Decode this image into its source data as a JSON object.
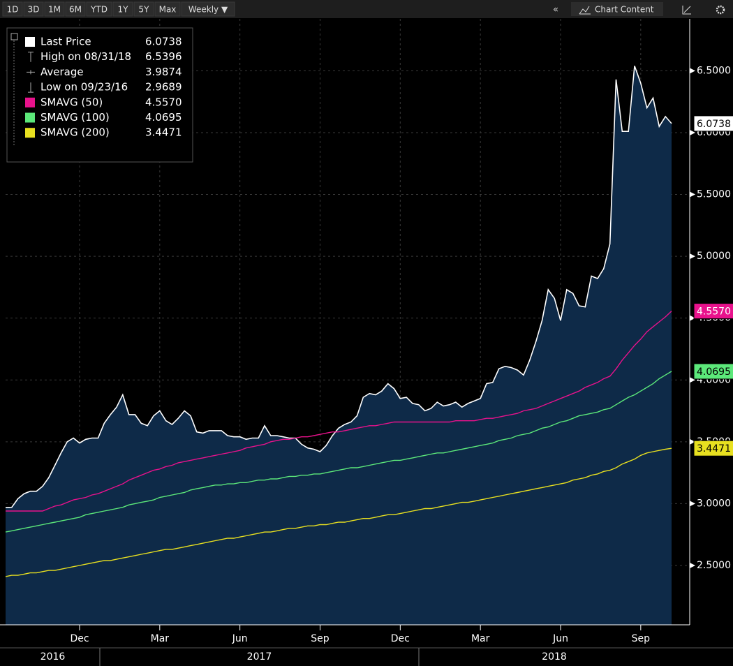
{
  "toolbar": {
    "ranges": [
      "1D",
      "3D",
      "1M",
      "6M",
      "YTD",
      "1Y",
      "5Y",
      "Max",
      "Weekly ▼"
    ],
    "collapse": "«",
    "menu": "Chart Content"
  },
  "chart_data": {
    "type": "line",
    "categories": [
      null,
      null,
      null,
      null,
      null,
      null,
      null,
      null,
      null,
      null,
      null,
      null,
      "Dec",
      null,
      null,
      null,
      null,
      null,
      null,
      null,
      null,
      null,
      null,
      null,
      null,
      "Mar",
      null,
      null,
      null,
      null,
      null,
      null,
      null,
      null,
      null,
      null,
      null,
      null,
      "Jun",
      null,
      null,
      null,
      null,
      null,
      null,
      null,
      null,
      null,
      null,
      null,
      null,
      "Sep",
      null,
      null,
      null,
      null,
      null,
      null,
      null,
      null,
      null,
      null,
      null,
      null,
      "Dec",
      null,
      null,
      null,
      null,
      null,
      null,
      null,
      null,
      null,
      null,
      null,
      null,
      "Mar",
      null,
      null,
      null,
      null,
      null,
      null,
      null,
      null,
      null,
      null,
      null,
      null,
      "Jun",
      null,
      null,
      null,
      null,
      null,
      null,
      null,
      null,
      null,
      null,
      null,
      null,
      "Sep",
      null,
      null,
      null,
      null,
      null
    ],
    "years": [
      "2016",
      "2017",
      "2018"
    ],
    "series": [
      {
        "name": "Last Price",
        "color": "#ffffff",
        "legend_label": "6.0738",
        "values": [
          2.9689,
          2.97,
          3.04,
          3.08,
          3.1,
          3.1,
          3.14,
          3.21,
          3.31,
          3.41,
          3.5,
          3.53,
          3.49,
          3.52,
          3.53,
          3.53,
          3.65,
          3.72,
          3.78,
          3.88,
          3.72,
          3.72,
          3.65,
          3.63,
          3.71,
          3.75,
          3.67,
          3.64,
          3.69,
          3.75,
          3.71,
          3.58,
          3.57,
          3.59,
          3.59,
          3.59,
          3.55,
          3.54,
          3.54,
          3.52,
          3.53,
          3.53,
          3.63,
          3.55,
          3.55,
          3.54,
          3.53,
          3.53,
          3.48,
          3.45,
          3.44,
          3.42,
          3.47,
          3.55,
          3.61,
          3.64,
          3.66,
          3.71,
          3.86,
          3.89,
          3.88,
          3.91,
          3.97,
          3.93,
          3.85,
          3.86,
          3.81,
          3.8,
          3.75,
          3.77,
          3.82,
          3.79,
          3.8,
          3.82,
          3.78,
          3.81,
          3.83,
          3.85,
          3.97,
          3.98,
          4.09,
          4.11,
          4.1,
          4.08,
          4.04,
          4.16,
          4.31,
          4.48,
          4.73,
          4.66,
          4.48,
          4.73,
          4.7,
          4.6,
          4.59,
          4.84,
          4.82,
          4.9,
          5.1,
          6.43,
          6.01,
          6.01,
          6.5396,
          6.4,
          6.2,
          6.28,
          6.05,
          6.13,
          6.0738
        ]
      },
      {
        "name": "SMAVG (50)",
        "color": "#e8128c",
        "legend_label": "4.5570",
        "values": [
          2.94,
          2.94,
          2.94,
          2.94,
          2.94,
          2.94,
          2.94,
          2.96,
          2.98,
          2.99,
          3.01,
          3.03,
          3.04,
          3.05,
          3.07,
          3.08,
          3.1,
          3.12,
          3.14,
          3.16,
          3.19,
          3.21,
          3.23,
          3.25,
          3.27,
          3.28,
          3.3,
          3.31,
          3.33,
          3.34,
          3.35,
          3.36,
          3.37,
          3.38,
          3.39,
          3.4,
          3.41,
          3.42,
          3.43,
          3.45,
          3.46,
          3.47,
          3.48,
          3.5,
          3.51,
          3.52,
          3.52,
          3.53,
          3.54,
          3.54,
          3.55,
          3.56,
          3.57,
          3.58,
          3.58,
          3.59,
          3.6,
          3.61,
          3.62,
          3.63,
          3.63,
          3.64,
          3.65,
          3.66,
          3.66,
          3.66,
          3.66,
          3.66,
          3.66,
          3.66,
          3.66,
          3.66,
          3.66,
          3.67,
          3.67,
          3.67,
          3.67,
          3.68,
          3.69,
          3.69,
          3.7,
          3.71,
          3.72,
          3.73,
          3.75,
          3.76,
          3.77,
          3.79,
          3.81,
          3.83,
          3.85,
          3.87,
          3.89,
          3.91,
          3.94,
          3.96,
          3.98,
          4.01,
          4.03,
          4.09,
          4.16,
          4.22,
          4.28,
          4.33,
          4.39,
          4.43,
          4.47,
          4.51,
          4.557
        ]
      },
      {
        "name": "SMAVG (100)",
        "color": "#5ce87a",
        "legend_label": "4.0695",
        "values": [
          2.77,
          2.78,
          2.79,
          2.8,
          2.81,
          2.82,
          2.83,
          2.84,
          2.85,
          2.86,
          2.87,
          2.88,
          2.89,
          2.91,
          2.92,
          2.93,
          2.94,
          2.95,
          2.96,
          2.97,
          2.99,
          3.0,
          3.01,
          3.02,
          3.03,
          3.05,
          3.06,
          3.07,
          3.08,
          3.09,
          3.11,
          3.12,
          3.13,
          3.14,
          3.15,
          3.15,
          3.16,
          3.16,
          3.17,
          3.17,
          3.18,
          3.19,
          3.19,
          3.2,
          3.2,
          3.21,
          3.22,
          3.22,
          3.23,
          3.23,
          3.24,
          3.24,
          3.25,
          3.26,
          3.27,
          3.28,
          3.29,
          3.29,
          3.3,
          3.31,
          3.32,
          3.33,
          3.34,
          3.35,
          3.35,
          3.36,
          3.37,
          3.38,
          3.39,
          3.4,
          3.41,
          3.41,
          3.42,
          3.43,
          3.44,
          3.45,
          3.46,
          3.47,
          3.48,
          3.49,
          3.51,
          3.52,
          3.53,
          3.55,
          3.56,
          3.57,
          3.59,
          3.61,
          3.62,
          3.64,
          3.66,
          3.67,
          3.69,
          3.71,
          3.72,
          3.73,
          3.74,
          3.76,
          3.77,
          3.8,
          3.83,
          3.86,
          3.88,
          3.91,
          3.94,
          3.97,
          4.01,
          4.04,
          4.0695
        ]
      },
      {
        "name": "SMAVG (200)",
        "color": "#e8e020",
        "legend_label": "3.4471",
        "values": [
          2.41,
          2.42,
          2.42,
          2.43,
          2.44,
          2.44,
          2.45,
          2.46,
          2.46,
          2.47,
          2.48,
          2.49,
          2.5,
          2.51,
          2.52,
          2.53,
          2.54,
          2.54,
          2.55,
          2.56,
          2.57,
          2.58,
          2.59,
          2.6,
          2.61,
          2.62,
          2.63,
          2.63,
          2.64,
          2.65,
          2.66,
          2.67,
          2.68,
          2.69,
          2.7,
          2.71,
          2.72,
          2.72,
          2.73,
          2.74,
          2.75,
          2.76,
          2.77,
          2.77,
          2.78,
          2.79,
          2.8,
          2.8,
          2.81,
          2.82,
          2.82,
          2.83,
          2.83,
          2.84,
          2.85,
          2.85,
          2.86,
          2.87,
          2.88,
          2.88,
          2.89,
          2.9,
          2.91,
          2.91,
          2.92,
          2.93,
          2.94,
          2.95,
          2.96,
          2.96,
          2.97,
          2.98,
          2.99,
          3.0,
          3.01,
          3.01,
          3.02,
          3.03,
          3.04,
          3.05,
          3.06,
          3.07,
          3.08,
          3.09,
          3.1,
          3.11,
          3.12,
          3.13,
          3.14,
          3.15,
          3.16,
          3.17,
          3.19,
          3.2,
          3.21,
          3.23,
          3.24,
          3.26,
          3.27,
          3.29,
          3.32,
          3.34,
          3.36,
          3.39,
          3.41,
          3.42,
          3.43,
          3.44,
          3.4471
        ]
      }
    ],
    "stats": [
      {
        "label": "High on 08/31/18",
        "value": "6.5396"
      },
      {
        "label": "Average",
        "value": "3.9874"
      },
      {
        "label": "Low on 09/23/16",
        "value": "2.9689"
      }
    ],
    "ylim": [
      2.02,
      6.92
    ],
    "yticks": [
      {
        "value": 2.5,
        "label": "2.5000"
      },
      {
        "value": 3.0,
        "label": "3.0000"
      },
      {
        "value": 3.5,
        "label": "3.5000"
      },
      {
        "value": 4.0,
        "label": "4.0000"
      },
      {
        "value": 4.5,
        "label": "4.5000"
      },
      {
        "value": 5.0,
        "label": "5.0000"
      },
      {
        "value": 5.5,
        "label": "5.5000"
      },
      {
        "value": 6.0,
        "label": "6.0000"
      },
      {
        "value": 6.5,
        "label": "6.5000"
      }
    ],
    "grid": true,
    "area_fill": "#0e2a48"
  }
}
